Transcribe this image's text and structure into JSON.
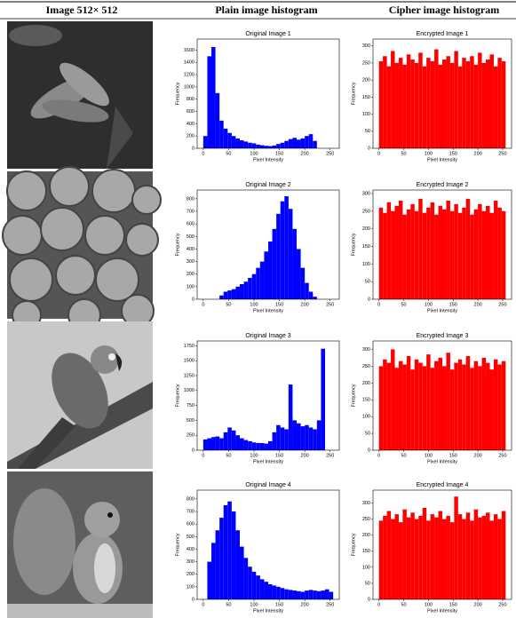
{
  "table": {
    "headers": [
      "Image 512× 512",
      "Plain image histogram",
      "Cipher image histogram"
    ],
    "rows": [
      {
        "plain": {
          "type": "histogram",
          "title": "Original Image 1",
          "x_label": "Pixel Intensity",
          "y_label": "Frequency",
          "color": "#0000ff",
          "bins": [
            0,
            8,
            16,
            24,
            32,
            40,
            48,
            56,
            64,
            72,
            80,
            88,
            96,
            104,
            112,
            120,
            128,
            136,
            144,
            152,
            160,
            168,
            176,
            184,
            192,
            200,
            208,
            216,
            224,
            232,
            240,
            248,
            256
          ],
          "counts": [
            200,
            1500,
            1650,
            900,
            450,
            320,
            250,
            200,
            160,
            130,
            110,
            90,
            80,
            60,
            50,
            40,
            35,
            45,
            70,
            90,
            120,
            150,
            170,
            140,
            160,
            200,
            230,
            120,
            0,
            0,
            0,
            0
          ],
          "xlim": [
            -12,
            268
          ],
          "xticks": [
            0,
            50,
            100,
            150,
            200,
            250
          ],
          "ylim": [
            0,
            1780
          ],
          "yticks": [
            0,
            200,
            400,
            600,
            800,
            1000,
            1200,
            1400,
            1600
          ]
        },
        "cipher": {
          "type": "histogram",
          "title": "Encrypted Image 1",
          "x_label": "Pixel Intensity",
          "y_label": "Frequency",
          "color": "#ff0000",
          "bins": [
            0,
            8,
            16,
            24,
            32,
            40,
            48,
            56,
            64,
            72,
            80,
            88,
            96,
            104,
            112,
            120,
            128,
            136,
            144,
            152,
            160,
            168,
            176,
            184,
            192,
            200,
            208,
            216,
            224,
            232,
            240,
            248,
            256
          ],
          "counts": [
            255,
            270,
            240,
            285,
            250,
            265,
            245,
            275,
            260,
            250,
            280,
            240,
            265,
            255,
            290,
            245,
            260,
            270,
            250,
            285,
            240,
            265,
            255,
            270,
            245,
            280,
            250,
            260,
            275,
            240,
            265,
            255
          ],
          "xlim": [
            -12,
            268
          ],
          "xticks": [
            0,
            50,
            100,
            150,
            200,
            250
          ],
          "ylim": [
            0,
            320
          ],
          "yticks": [
            0,
            50,
            100,
            150,
            200,
            250,
            300
          ]
        }
      },
      {
        "plain": {
          "type": "histogram",
          "title": "Original Image 2",
          "x_label": "Pixel Intensity",
          "y_label": "Frequency",
          "color": "#0000ff",
          "bins": [
            0,
            8,
            16,
            24,
            32,
            40,
            48,
            56,
            64,
            72,
            80,
            88,
            96,
            104,
            112,
            120,
            128,
            136,
            144,
            152,
            160,
            168,
            176,
            184,
            192,
            200,
            208,
            216,
            224,
            232,
            240,
            248,
            256
          ],
          "counts": [
            0,
            0,
            0,
            0,
            30,
            60,
            70,
            80,
            100,
            120,
            140,
            170,
            200,
            250,
            300,
            380,
            460,
            560,
            680,
            780,
            820,
            720,
            560,
            400,
            250,
            130,
            60,
            20,
            0,
            0,
            0,
            0
          ],
          "xlim": [
            -12,
            268
          ],
          "xticks": [
            0,
            50,
            100,
            150,
            200,
            250
          ],
          "ylim": [
            0,
            870
          ],
          "yticks": [
            0,
            100,
            200,
            300,
            400,
            500,
            600,
            700,
            800
          ]
        },
        "cipher": {
          "type": "histogram",
          "title": "Encrypted Image 2",
          "x_label": "Pixel Intensity",
          "y_label": "Frequency",
          "color": "#ff0000",
          "bins": [
            0,
            8,
            16,
            24,
            32,
            40,
            48,
            56,
            64,
            72,
            80,
            88,
            96,
            104,
            112,
            120,
            128,
            136,
            144,
            152,
            160,
            168,
            176,
            184,
            192,
            200,
            208,
            216,
            224,
            232,
            240,
            248,
            256
          ],
          "counts": [
            260,
            245,
            275,
            250,
            265,
            280,
            240,
            255,
            270,
            250,
            285,
            245,
            260,
            275,
            240,
            265,
            255,
            280,
            250,
            270,
            245,
            260,
            285,
            240,
            255,
            270,
            250,
            265,
            245,
            280,
            260,
            250
          ],
          "xlim": [
            -12,
            268
          ],
          "xticks": [
            0,
            50,
            100,
            150,
            200,
            250
          ],
          "ylim": [
            0,
            310
          ],
          "yticks": [
            0,
            50,
            100,
            150,
            200,
            250,
            300
          ]
        }
      },
      {
        "plain": {
          "type": "histogram",
          "title": "Original Image 3",
          "x_label": "Pixel Intensity",
          "y_label": "Frequency",
          "color": "#0000ff",
          "bins": [
            0,
            8,
            16,
            24,
            32,
            40,
            48,
            56,
            64,
            72,
            80,
            88,
            96,
            104,
            112,
            120,
            128,
            136,
            144,
            152,
            160,
            168,
            176,
            184,
            192,
            200,
            208,
            216,
            224,
            232,
            240,
            248,
            256
          ],
          "counts": [
            180,
            200,
            220,
            230,
            200,
            300,
            380,
            330,
            250,
            200,
            170,
            150,
            130,
            120,
            120,
            110,
            150,
            300,
            420,
            380,
            350,
            1100,
            500,
            450,
            400,
            420,
            380,
            350,
            500,
            1700,
            0,
            0
          ],
          "xlim": [
            -12,
            268
          ],
          "xticks": [
            0,
            50,
            100,
            150,
            200,
            250
          ],
          "ylim": [
            0,
            1830
          ],
          "yticks": [
            0,
            250,
            500,
            750,
            1000,
            1250,
            1500,
            1750
          ]
        },
        "cipher": {
          "type": "histogram",
          "title": "Encrypted Image 3",
          "x_label": "Pixel Intensity",
          "y_label": "Frequency",
          "color": "#ff0000",
          "bins": [
            0,
            8,
            16,
            24,
            32,
            40,
            48,
            56,
            64,
            72,
            80,
            88,
            96,
            104,
            112,
            120,
            128,
            136,
            144,
            152,
            160,
            168,
            176,
            184,
            192,
            200,
            208,
            216,
            224,
            232,
            240,
            248,
            256
          ],
          "counts": [
            250,
            270,
            260,
            300,
            245,
            265,
            255,
            280,
            240,
            270,
            260,
            250,
            285,
            245,
            265,
            275,
            250,
            290,
            240,
            260,
            270,
            255,
            280,
            245,
            265,
            250,
            275,
            260,
            240,
            270,
            255,
            265
          ],
          "xlim": [
            -12,
            268
          ],
          "xticks": [
            0,
            50,
            100,
            150,
            200,
            250
          ],
          "ylim": [
            0,
            325
          ],
          "yticks": [
            0,
            50,
            100,
            150,
            200,
            250,
            300
          ]
        }
      },
      {
        "plain": {
          "type": "histogram",
          "title": "Original Image 4",
          "x_label": "Pixel Intensity",
          "y_label": "Frequency",
          "color": "#0000ff",
          "bins": [
            0,
            8,
            16,
            24,
            32,
            40,
            48,
            56,
            64,
            72,
            80,
            88,
            96,
            104,
            112,
            120,
            128,
            136,
            144,
            152,
            160,
            168,
            176,
            184,
            192,
            200,
            208,
            216,
            224,
            232,
            240,
            248,
            256
          ],
          "counts": [
            0,
            300,
            450,
            550,
            650,
            750,
            780,
            700,
            550,
            420,
            330,
            260,
            220,
            190,
            160,
            140,
            120,
            110,
            100,
            90,
            80,
            75,
            70,
            65,
            60,
            70,
            75,
            70,
            65,
            70,
            80,
            60
          ],
          "xlim": [
            -12,
            268
          ],
          "xticks": [
            0,
            50,
            100,
            150,
            200,
            250
          ],
          "ylim": [
            0,
            870
          ],
          "yticks": [
            0,
            100,
            200,
            300,
            400,
            500,
            600,
            700,
            800
          ]
        },
        "cipher": {
          "type": "histogram",
          "title": "Encrypted Image 4",
          "x_label": "Pixel Intensity",
          "y_label": "Frequency",
          "color": "#ff0000",
          "bins": [
            0,
            8,
            16,
            24,
            32,
            40,
            48,
            56,
            64,
            72,
            80,
            88,
            96,
            104,
            112,
            120,
            128,
            136,
            144,
            152,
            160,
            168,
            176,
            184,
            192,
            200,
            208,
            216,
            224,
            232,
            240,
            248,
            256
          ],
          "counts": [
            245,
            260,
            275,
            250,
            265,
            240,
            280,
            255,
            270,
            250,
            260,
            285,
            245,
            265,
            255,
            275,
            250,
            260,
            240,
            320,
            265,
            250,
            270,
            245,
            280,
            255,
            260,
            270,
            245,
            265,
            250,
            275
          ],
          "xlim": [
            -12,
            268
          ],
          "xticks": [
            0,
            50,
            100,
            150,
            200,
            250
          ],
          "ylim": [
            0,
            340
          ],
          "yticks": [
            0,
            50,
            100,
            150,
            200,
            250,
            300
          ]
        }
      }
    ]
  }
}
